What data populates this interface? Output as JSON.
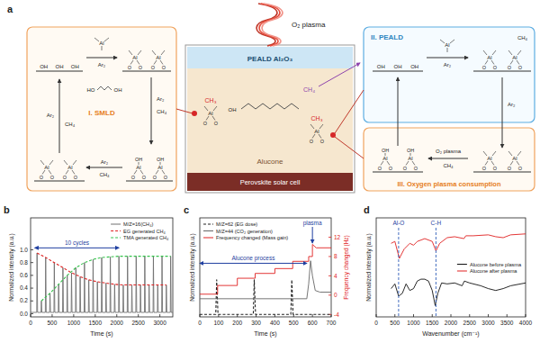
{
  "diagram": {
    "panel": "a",
    "plasma": "O₂ plasma",
    "layers": [
      "PEALD Al₂O₃",
      "Alucone",
      "Perovskite solar cell"
    ],
    "steps": [
      "I. SMLD",
      "II. PEALD",
      "III. Oxygen plasma consumption"
    ],
    "species": {
      "al": "Al",
      "o": "O",
      "oh": "OH",
      "ho": "HO",
      "ar": "Ar₂",
      "ch4": "CH₄",
      "ch3": "CH₃"
    }
  },
  "chart_data": [
    {
      "panel": "b",
      "type": "line",
      "x_label": "Time (s)",
      "y_label": "Normalized intensity (a.u.)",
      "xlim": [
        0,
        3300
      ],
      "xticks": [
        0,
        500,
        1000,
        1500,
        2000,
        2500,
        3000
      ],
      "ylim": [
        -0.05,
        1.5
      ],
      "yticks": [
        {
          "value": 0,
          "label": "0.0"
        },
        0.2,
        0.4,
        0.6,
        0.8,
        {
          "value": 1,
          "label": "1.0"
        }
      ],
      "legend": "upper right",
      "series": [
        {
          "name": "M/Z=16(CH₄)",
          "color": "#707070",
          "line_style": "solid",
          "x": [
            0,
            142,
            150,
            162,
            242,
            250,
            262,
            342,
            350,
            362,
            442,
            450,
            462,
            542,
            550,
            562,
            642,
            650,
            662,
            742,
            750,
            762,
            842,
            850,
            862,
            942,
            950,
            962,
            1042,
            1050,
            1062,
            1142,
            1150,
            1162,
            1242,
            1250,
            1262,
            1342,
            1350,
            1362,
            1442,
            1450,
            1462,
            1542,
            1550,
            1562,
            1642,
            1650,
            1662,
            1742,
            1750,
            1762,
            1842,
            1850,
            1862,
            1942,
            1950,
            1962,
            2042,
            2050,
            2062,
            2142,
            2150,
            2162,
            2242,
            2250,
            2262,
            2342,
            2350,
            2362,
            2442,
            2450,
            2462,
            2542,
            2550,
            2562,
            2642,
            2650,
            2662,
            2742,
            2750,
            2762,
            2842,
            2850,
            2862,
            2942,
            2950,
            2962,
            3042,
            3050,
            3062,
            3142,
            3150,
            3162,
            3242,
            3250,
            3262,
            3300
          ],
          "values": [
            0.02,
            0.02,
            0.95,
            0.02,
            0.02,
            0.2,
            0.02,
            0.02,
            0.88,
            0.02,
            0.02,
            0.32,
            0.02,
            0.02,
            0.8,
            0.02,
            0.02,
            0.46,
            0.02,
            0.02,
            0.72,
            0.02,
            0.02,
            0.6,
            0.02,
            0.02,
            0.64,
            0.02,
            0.02,
            0.72,
            0.02,
            0.02,
            0.58,
            0.02,
            0.02,
            0.8,
            0.02,
            0.02,
            0.53,
            0.02,
            0.02,
            0.85,
            0.02,
            0.02,
            0.5,
            0.02,
            0.02,
            0.88,
            0.02,
            0.02,
            0.48,
            0.02,
            0.02,
            0.89,
            0.02,
            0.02,
            0.46,
            0.02,
            0.02,
            0.9,
            0.02,
            0.02,
            0.45,
            0.02,
            0.02,
            0.9,
            0.02,
            0.02,
            0.45,
            0.02,
            0.02,
            0.9,
            0.02,
            0.02,
            0.45,
            0.02,
            0.02,
            0.9,
            0.02,
            0.02,
            0.45,
            0.02,
            0.02,
            0.9,
            0.02,
            0.02,
            0.45,
            0.02,
            0.02,
            0.9,
            0.02,
            0.02,
            0.45,
            0.02,
            0.02,
            0.9,
            0.02,
            0.02
          ]
        },
        {
          "name": "EG generated CH₄",
          "color": "#e02020",
          "line_style": "dashed",
          "x": [
            150,
            350,
            550,
            750,
            950,
            1150,
            1350,
            1550,
            1750,
            1950,
            2150,
            2350,
            2550,
            2750,
            2950,
            3150
          ],
          "values": [
            0.95,
            0.88,
            0.8,
            0.72,
            0.64,
            0.58,
            0.53,
            0.5,
            0.48,
            0.46,
            0.45,
            0.45,
            0.45,
            0.45,
            0.45,
            0.45
          ]
        },
        {
          "name": "TMA generated CH₄",
          "color": "#33c24a",
          "line_style": "dashed",
          "x": [
            250,
            450,
            650,
            850,
            1050,
            1250,
            1450,
            1650,
            1850,
            2050,
            2250,
            2450,
            2650,
            2850,
            3050,
            3250
          ],
          "values": [
            0.2,
            0.32,
            0.46,
            0.6,
            0.72,
            0.8,
            0.85,
            0.88,
            0.89,
            0.9,
            0.9,
            0.9,
            0.9,
            0.9,
            0.9,
            0.9
          ]
        }
      ],
      "annotations": [
        {
          "text": "10 cycles",
          "x": [
            100,
            2050
          ],
          "y": 1.03
        }
      ]
    },
    {
      "panel": "c",
      "type": "line",
      "x_label": "Time (s)",
      "y_label": "Normalized intensity (a.u.)",
      "y2_label": "Frequency changed (Hz)",
      "xlim": [
        0,
        700
      ],
      "xticks": [
        0,
        100,
        200,
        300,
        400,
        500,
        600,
        700
      ],
      "ylim": [
        0,
        1.2
      ],
      "y2lim": [
        -4.5,
        16
      ],
      "y2ticks": [
        -4,
        0,
        4,
        8,
        12
      ],
      "legend": "upper left",
      "series": [
        {
          "name": "M/Z=62 (EG dose)",
          "color": "#222222",
          "line_style": "dashed",
          "x": [
            0,
            85,
            90,
            97,
            285,
            290,
            297,
            485,
            490,
            497,
            700
          ],
          "values": [
            0.03,
            0.03,
            0.45,
            0.03,
            0.03,
            0.45,
            0.03,
            0.03,
            0.45,
            0.03,
            0.03
          ]
        },
        {
          "name": "M/Z=44 (CO₂ generation)",
          "color": "#666666",
          "line_style": "solid",
          "x": [
            0,
            570,
            580,
            590,
            600,
            615,
            640,
            700
          ],
          "values": [
            0.22,
            0.22,
            0.4,
            0.68,
            0.5,
            0.32,
            0.3,
            0.3
          ]
        },
        {
          "name": "Frequency changed (Mass gain)",
          "color": "#e02020",
          "line_style": "solid",
          "axis": "y2",
          "x": [
            0,
            95,
            95,
            200,
            200,
            295,
            295,
            400,
            400,
            495,
            495,
            580,
            580,
            600,
            600,
            620,
            700
          ],
          "values": [
            0.2,
            0.2,
            2,
            2,
            3.5,
            3.5,
            4.5,
            4.5,
            5.5,
            5.5,
            7,
            7,
            8,
            8,
            10.5,
            9.8,
            9.8
          ]
        }
      ],
      "annotations": [
        {
          "text": "Alucone process",
          "x": [
            0,
            570
          ],
          "y": 6.6,
          "axis": "y2"
        },
        {
          "text": "plasma",
          "x": 600,
          "y": 10.8,
          "axis": "y2"
        }
      ]
    },
    {
      "panel": "d",
      "type": "line",
      "x_label": "Wavenumber (cm⁻¹)",
      "y_label": "Normalized intensity (a.u.)",
      "xlim": [
        0,
        4000
      ],
      "xticks": [
        0,
        500,
        1000,
        1500,
        2000,
        2500,
        3000,
        3500,
        4000
      ],
      "ylim": [
        0,
        1.05
      ],
      "legend": "center right",
      "series": [
        {
          "name": "Alucone before plasma",
          "color": "#111111",
          "line_style": "solid",
          "x": [
            400,
            500,
            600,
            700,
            800,
            900,
            1000,
            1100,
            1200,
            1300,
            1400,
            1500,
            1580,
            1650,
            1750,
            1900,
            2100,
            2300,
            2360,
            2500,
            2800,
            3000,
            3200,
            3400,
            3600,
            4000
          ],
          "values": [
            0.3,
            0.35,
            0.22,
            0.25,
            0.35,
            0.28,
            0.3,
            0.38,
            0.4,
            0.4,
            0.38,
            0.28,
            0.12,
            0.25,
            0.36,
            0.35,
            0.36,
            0.33,
            0.38,
            0.36,
            0.33,
            0.3,
            0.28,
            0.3,
            0.33,
            0.36
          ]
        },
        {
          "name": "Alucone after plasma",
          "color": "#e02020",
          "line_style": "solid",
          "x": [
            400,
            500,
            620,
            750,
            900,
            1000,
            1100,
            1300,
            1500,
            1600,
            1700,
            1900,
            2100,
            2350,
            2400,
            2600,
            3000,
            3200,
            3400,
            3600,
            4000
          ],
          "values": [
            0.78,
            0.8,
            0.62,
            0.72,
            0.78,
            0.76,
            0.8,
            0.83,
            0.8,
            0.7,
            0.78,
            0.84,
            0.85,
            0.83,
            0.86,
            0.86,
            0.87,
            0.85,
            0.84,
            0.87,
            0.88
          ]
        }
      ],
      "annotations": [
        {
          "text": "Al-O",
          "x": 600
        },
        {
          "text": "C-H",
          "x": 1600
        }
      ]
    }
  ]
}
